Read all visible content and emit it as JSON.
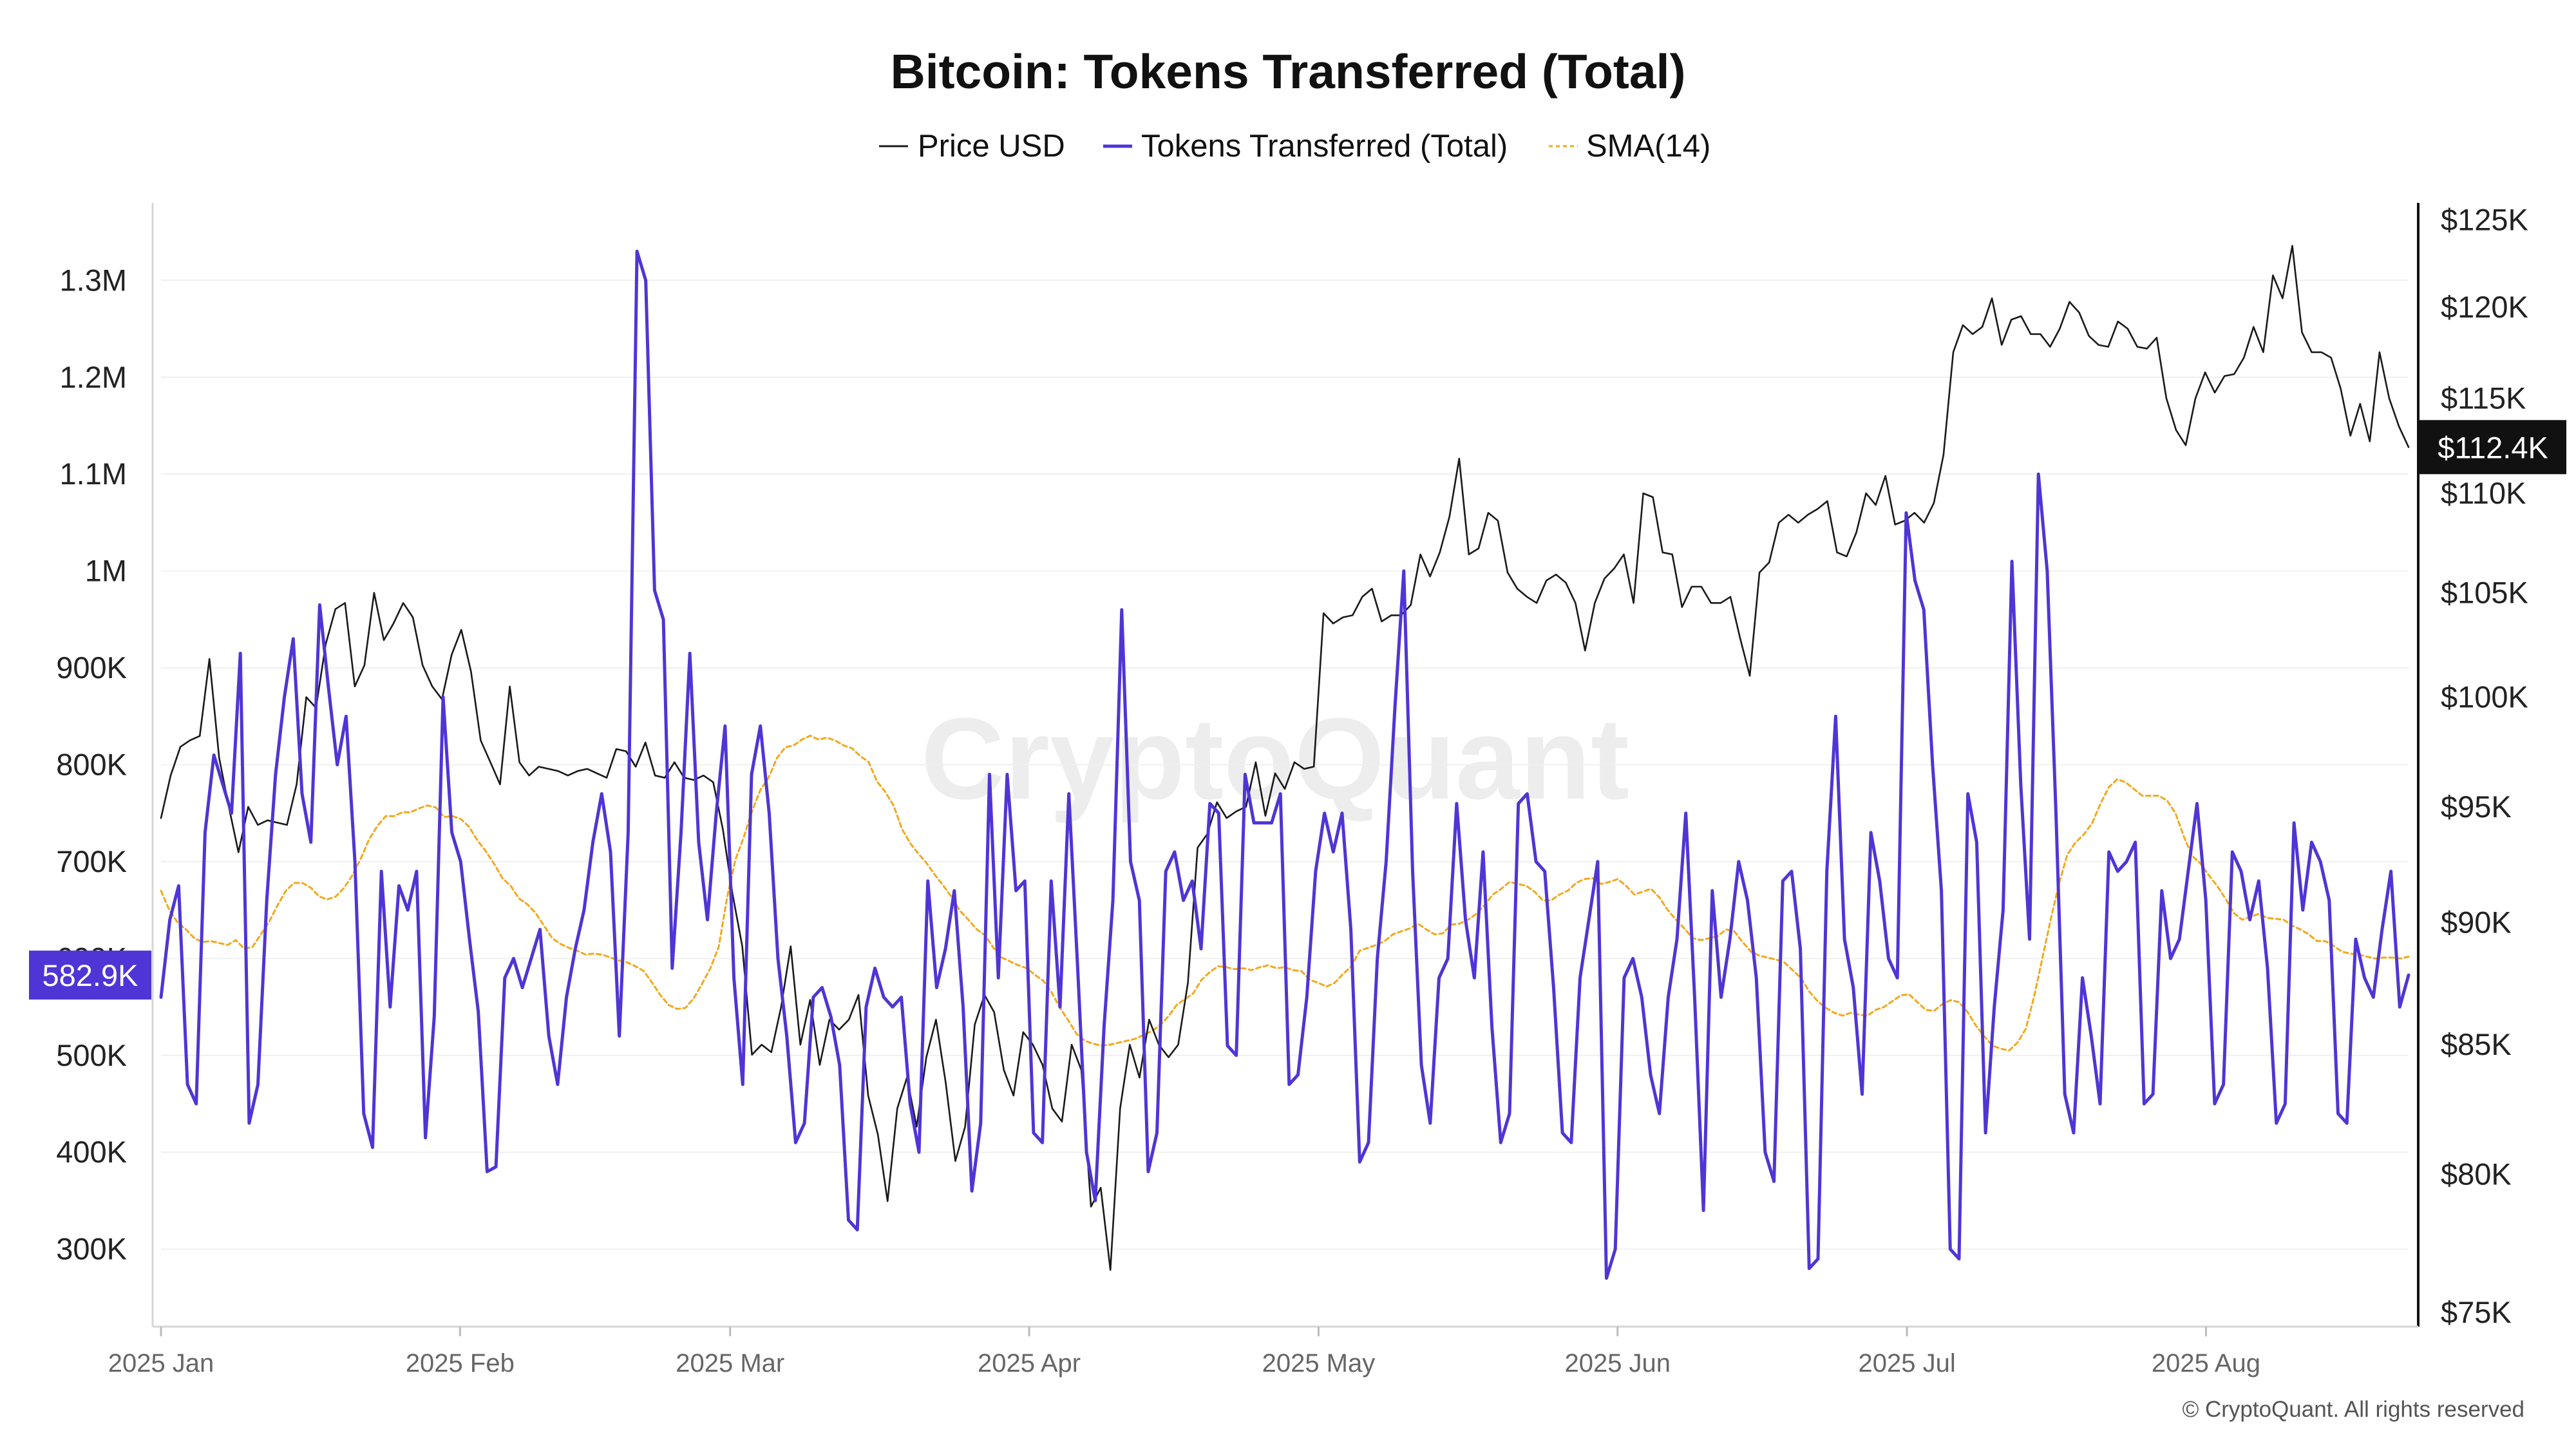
{
  "chart_data": {
    "type": "line",
    "title": "Bitcoin: Tokens Transferred (Total)",
    "legend": [
      {
        "label": "Price USD",
        "color": "#1a1a1a",
        "style": "solid"
      },
      {
        "label": "Tokens Transferred (Total)",
        "color": "#4f35d6",
        "style": "solid"
      },
      {
        "label": "SMA(14)",
        "color": "#f3a81c",
        "style": "dashed"
      }
    ],
    "legend_position": "top-center",
    "x_ticks": [
      "2025 Jan",
      "2025 Feb",
      "2025 Mar",
      "2025 Apr",
      "2025 May",
      "2025 Jun",
      "2025 Jul",
      "2025 Aug"
    ],
    "x_range": [
      "2025-01-01",
      "2025-08-22"
    ],
    "left_axis": {
      "ticks": [
        "300K",
        "400K",
        "500K",
        "600K",
        "700K",
        "800K",
        "900K",
        "1M",
        "1.1M",
        "1.2M",
        "1.3M"
      ],
      "tick_values": [
        300000,
        400000,
        500000,
        600000,
        700000,
        800000,
        900000,
        1000000,
        1100000,
        1200000,
        1300000
      ],
      "range": [
        220000,
        1380000
      ]
    },
    "right_axis": {
      "ticks": [
        "$75K",
        "$80K",
        "$85K",
        "$90K",
        "$95K",
        "$100K",
        "$105K",
        "$110K",
        "$115K",
        "$120K",
        "$125K"
      ],
      "tick_values": [
        75000,
        80000,
        85000,
        90000,
        95000,
        100000,
        105000,
        110000,
        115000,
        120000,
        125000
      ],
      "scale": "log",
      "range": [
        74500,
        126000
      ]
    },
    "last_values": {
      "tokens_label": "582.9K",
      "tokens_value": 582900,
      "price_label": "$112.4K",
      "price_value": 112400
    },
    "series": [
      {
        "name": "Tokens Transferred (Total)",
        "axis": "left",
        "values": [
          560000,
          640000,
          675000,
          470000,
          450000,
          730000,
          810000,
          780000,
          750000,
          915000,
          430000,
          470000,
          660000,
          790000,
          870000,
          930000,
          770000,
          720000,
          965000,
          880000,
          800000,
          850000,
          700000,
          440000,
          405000,
          690000,
          550000,
          675000,
          650000,
          690000,
          415000,
          540000,
          870000,
          730000,
          700000,
          620000,
          545000,
          380000,
          385000,
          580000,
          600000,
          570000,
          600000,
          630000,
          520000,
          470000,
          560000,
          610000,
          650000,
          720000,
          770000,
          710000,
          520000,
          730000,
          1330000,
          1300000,
          980000,
          950000,
          590000,
          730000,
          915000,
          720000,
          640000,
          750000,
          840000,
          580000,
          470000,
          790000,
          840000,
          750000,
          600000,
          520000,
          410000,
          430000,
          560000,
          570000,
          540000,
          490000,
          330000,
          320000,
          550000,
          590000,
          560000,
          550000,
          560000,
          450000,
          400000,
          680000,
          570000,
          610000,
          670000,
          550000,
          360000,
          430000,
          790000,
          580000,
          790000,
          670000,
          680000,
          420000,
          410000,
          680000,
          550000,
          770000,
          590000,
          400000,
          350000,
          530000,
          660000,
          960000,
          700000,
          660000,
          380000,
          420000,
          690000,
          710000,
          660000,
          680000,
          610000,
          760000,
          750000,
          510000,
          500000,
          790000,
          740000,
          740000,
          740000,
          770000,
          470000,
          480000,
          560000,
          690000,
          750000,
          710000,
          750000,
          630000,
          390000,
          410000,
          600000,
          700000,
          860000,
          1000000,
          690000,
          490000,
          430000,
          580000,
          600000,
          760000,
          640000,
          580000,
          710000,
          530000,
          410000,
          440000,
          760000,
          770000,
          700000,
          690000,
          570000,
          420000,
          410000,
          580000,
          640000,
          700000,
          270000,
          300000,
          580000,
          600000,
          560000,
          480000,
          440000,
          560000,
          620000,
          750000,
          560000,
          340000,
          670000,
          560000,
          620000,
          700000,
          660000,
          580000,
          400000,
          370000,
          680000,
          690000,
          610000,
          280000,
          290000,
          690000,
          850000,
          620000,
          570000,
          460000,
          730000,
          680000,
          600000,
          580000,
          1060000,
          990000,
          960000,
          800000,
          670000,
          300000,
          290000,
          770000,
          720000,
          420000,
          550000,
          650000,
          1010000,
          780000,
          620000,
          1100000,
          1000000,
          750000,
          460000,
          420000,
          580000,
          520000,
          450000,
          710000,
          690000,
          700000,
          720000,
          450000,
          460000,
          670000,
          600000,
          620000,
          690000,
          760000,
          660000,
          450000,
          470000,
          710000,
          690000,
          640000,
          680000,
          590000,
          430000,
          450000,
          740000,
          650000,
          720000,
          700000,
          660000,
          440000,
          430000,
          620000,
          580000,
          560000,
          630000,
          690000,
          550000,
          582900
        ]
      },
      {
        "name": "Price USD",
        "axis": "right",
        "values": [
          94500,
          96400,
          97700,
          98000,
          98200,
          101800,
          97200,
          95000,
          93000,
          95000,
          94200,
          94400,
          94300,
          94200,
          96000,
          100000,
          99500,
          102500,
          104200,
          104500,
          100500,
          101500,
          105000,
          102700,
          103500,
          104500,
          103800,
          101500,
          100500,
          99900,
          102000,
          103200,
          101200,
          98000,
          97000,
          96000,
          100500,
          97000,
          96400,
          96800,
          96700,
          96600,
          96400,
          96600,
          96700,
          96500,
          96300,
          97600,
          97500,
          96800,
          97900,
          96400,
          96300,
          97000,
          96300,
          96200,
          96400,
          96100,
          94000,
          91200,
          89000,
          84600,
          85000,
          84700,
          86500,
          89000,
          85000,
          86800,
          84200,
          86000,
          85600,
          86000,
          87000,
          83000,
          81500,
          79000,
          82500,
          83700,
          81800,
          84500,
          86000,
          83500,
          80500,
          81800,
          85800,
          87000,
          86300,
          84000,
          83000,
          85500,
          85000,
          84200,
          82500,
          82000,
          85000,
          84000,
          78800,
          79500,
          76500,
          82500,
          85000,
          83700,
          86000,
          85000,
          84500,
          85000,
          87500,
          93200,
          93800,
          95200,
          94500,
          94800,
          95000,
          97000,
          94600,
          96500,
          95800,
          97000,
          96700,
          96800,
          104000,
          103500,
          103800,
          103900,
          104800,
          105200,
          103600,
          103900,
          103900,
          104400,
          106900,
          105800,
          107000,
          108800,
          111800,
          106900,
          107200,
          109000,
          108600,
          106000,
          105200,
          104800,
          104500,
          105600,
          105900,
          105500,
          104500,
          102200,
          104500,
          105700,
          106200,
          106900,
          104500,
          110000,
          109800,
          107000,
          106900,
          104300,
          105300,
          105300,
          104500,
          104500,
          104800,
          102800,
          101000,
          106000,
          106500,
          108500,
          108900,
          108500,
          108900,
          109200,
          109600,
          107000,
          106800,
          108000,
          110000,
          109400,
          110900,
          108400,
          108600,
          109000,
          108500,
          109500,
          112000,
          117500,
          119000,
          118500,
          118900,
          120500,
          117900,
          119300,
          119500,
          118500,
          118500,
          117800,
          118800,
          120300,
          119700,
          118400,
          117900,
          117800,
          119200,
          118800,
          117800,
          117700,
          118300,
          115000,
          113300,
          112500,
          115000,
          116400,
          115300,
          116200,
          116300,
          117200,
          118900,
          117500,
          121800,
          120500,
          123500,
          118600,
          117500,
          117500,
          117200,
          115500,
          113000,
          114700,
          112700,
          117500,
          115000,
          113500,
          112400
        ]
      },
      {
        "name": "SMA(14)",
        "axis": "left",
        "values": [
          670000,
          650000,
          637000,
          630000,
          621000,
          617000,
          618000,
          616000,
          614000,
          619000,
          610000,
          612000,
          625000,
          638000,
          655000,
          670000,
          678000,
          678000,
          673000,
          664000,
          661000,
          664000,
          673000,
          686000,
          703000,
          723000,
          737000,
          747000,
          747000,
          751000,
          751000,
          755000,
          758000,
          756000,
          746000,
          747000,
          744000,
          736000,
          722000,
          711000,
          698000,
          683000,
          675000,
          662000,
          656000,
          647000,
          634000,
          621000,
          615000,
          611000,
          608000,
          604000,
          605000,
          604000,
          601000,
          598000,
          596000,
          592000,
          587000,
          575000,
          562000,
          552000,
          548000,
          549000,
          559000,
          574000,
          590000,
          612000,
          663000,
          702000,
          725000,
          752000,
          774000,
          787000,
          807000,
          818000,
          820000,
          826000,
          830000,
          826000,
          828000,
          825000,
          820000,
          817000,
          809000,
          803000,
          783000,
          772000,
          758000,
          734000,
          719000,
          708000,
          698000,
          686000,
          675000,
          663000,
          649000,
          640000,
          630000,
          624000,
          611000,
          601000,
          597000,
          593000,
          590000,
          583000,
          577000,
          565000,
          549000,
          536000,
          522000,
          515000,
          512000,
          510000,
          511000,
          513000,
          515000,
          517000,
          521000,
          525000,
          531000,
          540000,
          552000,
          558000,
          564000,
          578000,
          586000,
          592000,
          591000,
          589000,
          590000,
          588000,
          591000,
          593000,
          590000,
          591000,
          588000,
          587000,
          578000,
          575000,
          571000,
          575000,
          584000,
          592000,
          608000,
          611000,
          614000,
          618000,
          625000,
          628000,
          631000,
          636000,
          630000,
          625000,
          626000,
          635000,
          636000,
          640000,
          646000,
          655000,
          666000,
          672000,
          679000,
          677000,
          675000,
          669000,
          660000,
          660000,
          666000,
          670000,
          678000,
          682000,
          683000,
          677000,
          679000,
          682000,
          675000,
          666000,
          669000,
          672000,
          663000,
          650000,
          640000,
          631000,
          621000,
          619000,
          621000,
          623000,
          630000,
          628000,
          617000,
          607000,
          603000,
          601000,
          599000,
          596000,
          588000,
          580000,
          566000,
          556000,
          549000,
          544000,
          541000,
          544000,
          542000,
          541000,
          547000,
          550000,
          556000,
          562000,
          563000,
          555000,
          547000,
          546000,
          553000,
          557000,
          555000,
          545000,
          531000,
          520000,
          510000,
          507000,
          505000,
          513000,
          527000,
          560000,
          600000,
          640000,
          677000,
          707000,
          720000,
          728000,
          740000,
          760000,
          777000,
          785000,
          782000,
          775000,
          768000,
          768000,
          768000,
          763000,
          750000,
          726000,
          706000,
          698000,
          686000,
          675000,
          662000,
          647000,
          640000,
          643000,
          646000,
          642000,
          641000,
          640000,
          634000,
          630000,
          625000,
          618000,
          618000,
          613000,
          607000,
          605000,
          604000,
          602000,
          600000,
          601000,
          601000,
          600000,
          602000
        ]
      }
    ]
  },
  "watermark": "CryptoQuant",
  "copyright": "© CryptoQuant. All rights reserved"
}
